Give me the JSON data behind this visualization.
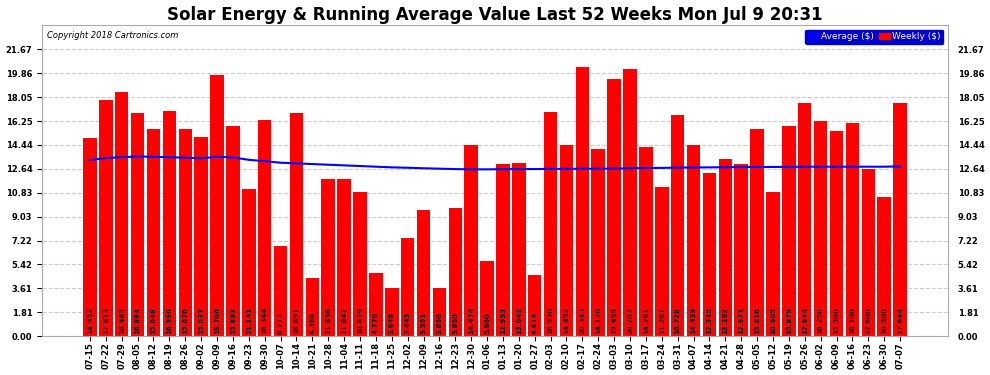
{
  "title": "Solar Energy & Running Average Value Last 52 Weeks Mon Jul 9 20:31",
  "copyright": "Copyright 2018 Cartronics.com",
  "bar_color": "#ff0000",
  "avg_line_color": "#0000ff",
  "background_color": "#ffffff",
  "grid_color": "#cccccc",
  "yticks": [
    0.0,
    1.81,
    3.61,
    5.42,
    7.22,
    9.03,
    10.83,
    12.64,
    14.44,
    16.25,
    18.05,
    19.86,
    21.67
  ],
  "dates": [
    "07-15",
    "07-22",
    "07-29",
    "08-05",
    "08-12",
    "08-19",
    "08-26",
    "09-02",
    "09-09",
    "09-16",
    "09-23",
    "09-30",
    "10-07",
    "10-14",
    "10-21",
    "10-28",
    "11-04",
    "11-11",
    "11-18",
    "11-25",
    "12-02",
    "12-09",
    "12-16",
    "12-23",
    "12-30",
    "01-06",
    "01-13",
    "01-20",
    "01-27",
    "02-03",
    "02-10",
    "02-17",
    "02-24",
    "03-03",
    "03-10",
    "03-17",
    "03-24",
    "03-31",
    "04-07",
    "04-14",
    "04-21",
    "04-28",
    "05-05",
    "05-12",
    "05-19",
    "05-26",
    "06-02",
    "06-09",
    "06-16",
    "06-23",
    "06-30",
    "07-07"
  ],
  "weekly_values": [
    14.952,
    17.813,
    18.465,
    16.884,
    15.648,
    16.99,
    15.676,
    15.037,
    19.706,
    15.892,
    11.141,
    16.344,
    6.777,
    16.891,
    4.368,
    11.856,
    11.842,
    10.879,
    4.77,
    3.646,
    7.449,
    9.561,
    3.66,
    9.66,
    14.474,
    5.66,
    12.993,
    13.042,
    4.614,
    16.93,
    14.452,
    20.343,
    14.128,
    19.455,
    20.203,
    14.281,
    11.261,
    16.728,
    14.439,
    12.345,
    13.392,
    12.971,
    15.616,
    10.905,
    15.879,
    17.644,
    16.25,
    15.5,
    16.1,
    12.6,
    10.5,
    17.644
  ],
  "avg_values": [
    13.3,
    13.45,
    13.52,
    13.57,
    13.55,
    13.52,
    13.48,
    13.43,
    13.55,
    13.5,
    13.32,
    13.22,
    13.1,
    13.05,
    13.0,
    12.95,
    12.9,
    12.85,
    12.8,
    12.75,
    12.72,
    12.68,
    12.65,
    12.62,
    12.6,
    12.6,
    12.61,
    12.62,
    12.62,
    12.64,
    12.64,
    12.65,
    12.65,
    12.66,
    12.68,
    12.7,
    12.71,
    12.73,
    12.74,
    12.75,
    12.76,
    12.77,
    12.78,
    12.78,
    12.79,
    12.8,
    12.8,
    12.8,
    12.8,
    12.8,
    12.8,
    12.82
  ],
  "legend_avg_color": "#0000ff",
  "legend_avg_label": "Average ($)",
  "legend_weekly_color": "#ff0000",
  "legend_weekly_label": "Weekly ($)",
  "bar_value_fontsize": 5.0,
  "title_fontsize": 12,
  "tick_fontsize": 6.0,
  "ylim_max": 23.5
}
